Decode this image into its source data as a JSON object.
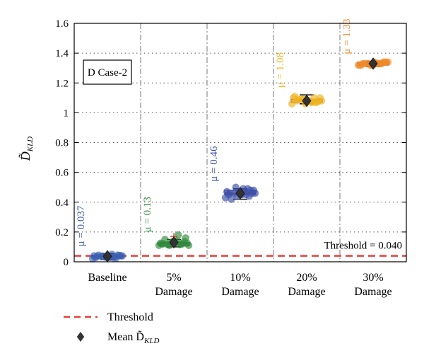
{
  "chart_data": {
    "type": "box",
    "title": "",
    "ylabel": "D̃",
    "ylabel_subscript": "KLD",
    "ylim": [
      0,
      1.6
    ],
    "yticks": [
      0,
      0.2,
      0.4,
      0.6,
      0.8,
      1,
      1.2,
      1.4,
      1.6
    ],
    "grid": true,
    "annotation_box": "D Case-2",
    "threshold": {
      "value": 0.04,
      "label": "Threshold = 0.040",
      "color": "#e8403a"
    },
    "categories": [
      {
        "line1": "Baseline",
        "line2": ""
      },
      {
        "line1": "5%",
        "line2": "Damage"
      },
      {
        "line1": "10%",
        "line2": "Damage"
      },
      {
        "line1": "20%",
        "line2": "Damage"
      },
      {
        "line1": "30%",
        "line2": "Damage"
      }
    ],
    "groups": [
      {
        "mean": 0.037,
        "mu_label": "μ = 0.037",
        "color": "#3a5fb0",
        "box_fill": "#7fa0d8",
        "q1": 0.025,
        "median": 0.035,
        "q3": 0.045,
        "whisker_low": 0.015,
        "whisker_high": 0.055,
        "points": [
          0.02,
          0.025,
          0.03,
          0.035,
          0.04,
          0.045,
          0.03,
          0.038,
          0.028,
          0.042,
          0.05,
          0.033,
          0.036,
          0.041,
          0.027,
          0.031,
          0.044,
          0.039,
          0.034,
          0.03
        ]
      },
      {
        "mean": 0.13,
        "mu_label": "μ = 0.13",
        "color": "#2e8b3a",
        "box_fill": "#69bf5a",
        "q1": 0.11,
        "median": 0.12,
        "q3": 0.13,
        "whisker_low": 0.1,
        "whisker_high": 0.15,
        "outliers": [
          0.17
        ],
        "points": [
          0.11,
          0.12,
          0.13,
          0.115,
          0.125,
          0.135,
          0.14,
          0.11,
          0.12,
          0.16,
          0.18,
          0.13,
          0.12,
          0.125,
          0.115,
          0.13,
          0.15,
          0.11,
          0.12,
          0.14
        ]
      },
      {
        "mean": 0.46,
        "mu_label": "μ = 0.46",
        "color": "#3a4fa8",
        "box_fill": "#8a9ad8",
        "q1": 0.45,
        "median": 0.46,
        "q3": 0.48,
        "whisker_low": 0.42,
        "whisker_high": 0.49,
        "points": [
          0.43,
          0.44,
          0.45,
          0.46,
          0.47,
          0.48,
          0.49,
          0.5,
          0.45,
          0.46,
          0.47,
          0.44,
          0.46,
          0.48,
          0.45,
          0.47,
          0.42,
          0.46,
          0.49,
          0.45
        ]
      },
      {
        "mean": 1.08,
        "mu_label": "μ = 1.08",
        "color": "#f0b420",
        "box_fill": "#f5cb55",
        "q1": 1.07,
        "median": 1.08,
        "q3": 1.09,
        "whisker_low": 1.06,
        "whisker_high": 1.12,
        "points": [
          1.06,
          1.07,
          1.08,
          1.09,
          1.1,
          1.07,
          1.08,
          1.09,
          1.11,
          1.08,
          1.07,
          1.09,
          1.08,
          1.1,
          1.07,
          1.06,
          1.09,
          1.08,
          1.1,
          1.08
        ]
      },
      {
        "mean": 1.33,
        "mu_label": "μ = 1.33",
        "color": "#f08a2a",
        "box_fill": "#f5a85a",
        "q1": 1.32,
        "median": 1.33,
        "q3": 1.34,
        "whisker_low": 1.31,
        "whisker_high": 1.345,
        "points": [
          1.32,
          1.33,
          1.34,
          1.33,
          1.32,
          1.34,
          1.33,
          1.33,
          1.32,
          1.34,
          1.33,
          1.32,
          1.33,
          1.34,
          1.33,
          1.32,
          1.33,
          1.34,
          1.33,
          1.32
        ]
      }
    ],
    "legend": [
      {
        "label": "Threshold",
        "marker": "dashed-line",
        "color": "#e8403a"
      },
      {
        "label": "Mean D̃",
        "label_subscript": "KLD",
        "marker": "diamond",
        "color": "#333333"
      }
    ]
  }
}
